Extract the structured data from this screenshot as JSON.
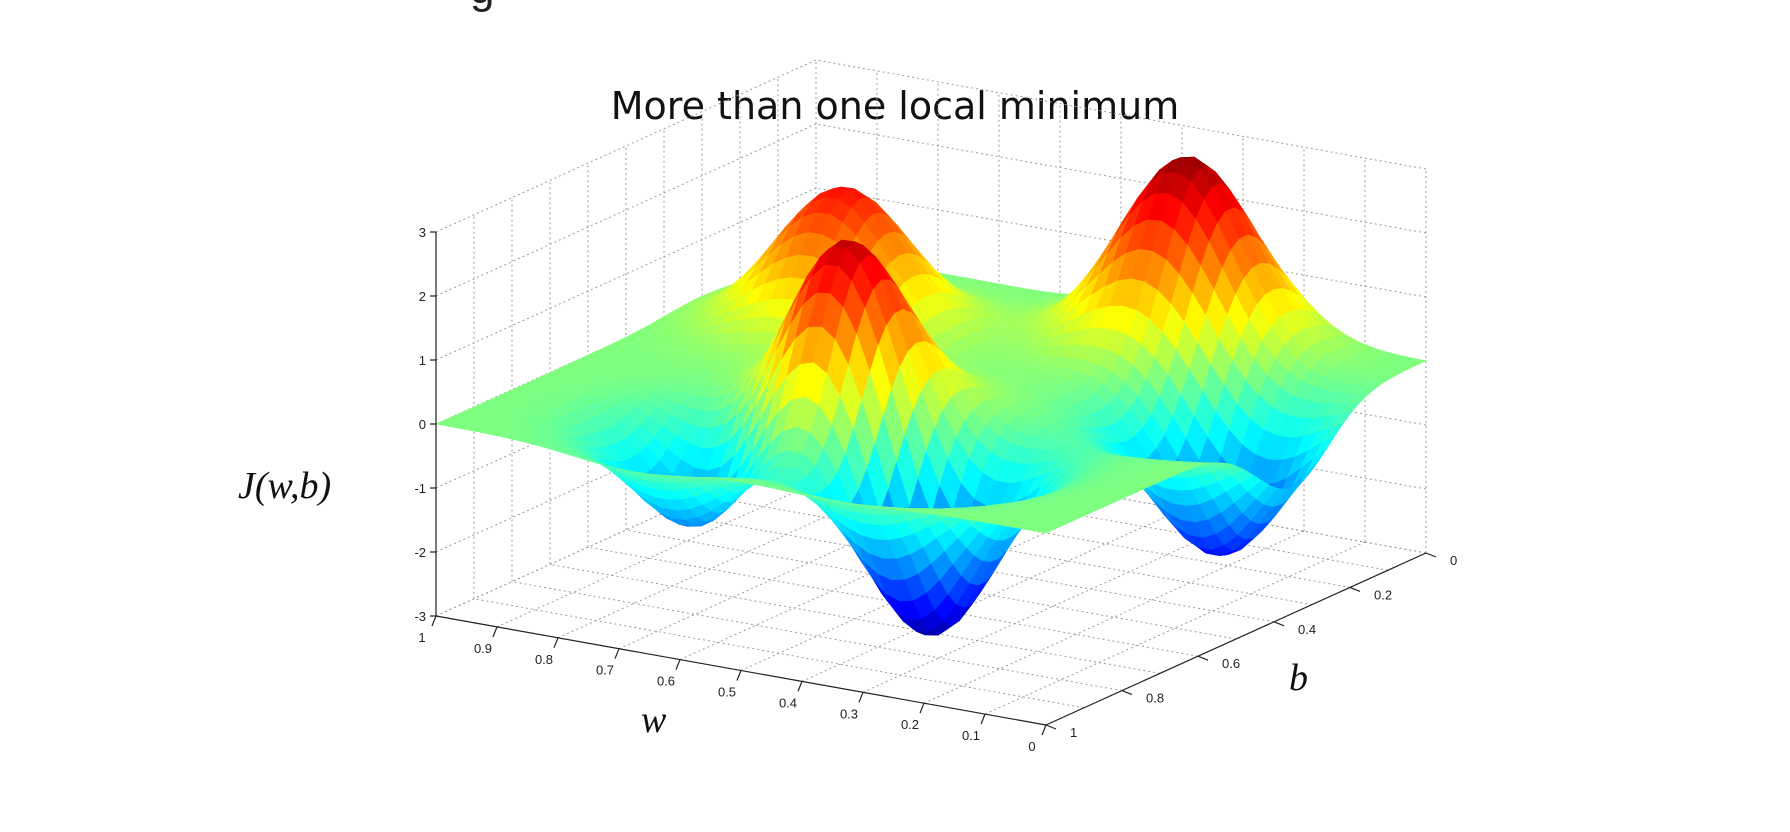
{
  "slide": {
    "heading_fragment": "g"
  },
  "chart_data": {
    "type": "surface",
    "title": "More than one local minimum",
    "xlabel": "w",
    "ylabel": "b",
    "zlabel": "J(w,b)",
    "xlim": [
      0,
      1
    ],
    "ylim": [
      0,
      1
    ],
    "zlim": [
      -3,
      3
    ],
    "x_ticks": [
      "0",
      "0.1",
      "0.2",
      "0.3",
      "0.4",
      "0.5",
      "0.6",
      "0.7",
      "0.8",
      "0.9",
      "1"
    ],
    "y_ticks": [
      "0",
      "0.2",
      "0.4",
      "0.6",
      "0.8",
      "1"
    ],
    "z_ticks": [
      "-3",
      "-2",
      "-1",
      "0",
      "1",
      "2",
      "3"
    ],
    "grid": true,
    "colormap": "jet",
    "features": [
      {
        "kind": "peak",
        "w": 0.33,
        "b": 0.1,
        "J": 2.9
      },
      {
        "kind": "peak",
        "w": 0.77,
        "b": 0.3,
        "J": 2.2
      },
      {
        "kind": "peak",
        "w": 0.55,
        "b": 0.65,
        "J": 3.0
      },
      {
        "kind": "valley",
        "w": 0.35,
        "b": 0.75,
        "J": -3.0
      },
      {
        "kind": "valley",
        "w": 0.12,
        "b": 0.35,
        "J": -2.3
      },
      {
        "kind": "valley",
        "w": 0.68,
        "b": 0.8,
        "J": -1.8
      }
    ]
  }
}
